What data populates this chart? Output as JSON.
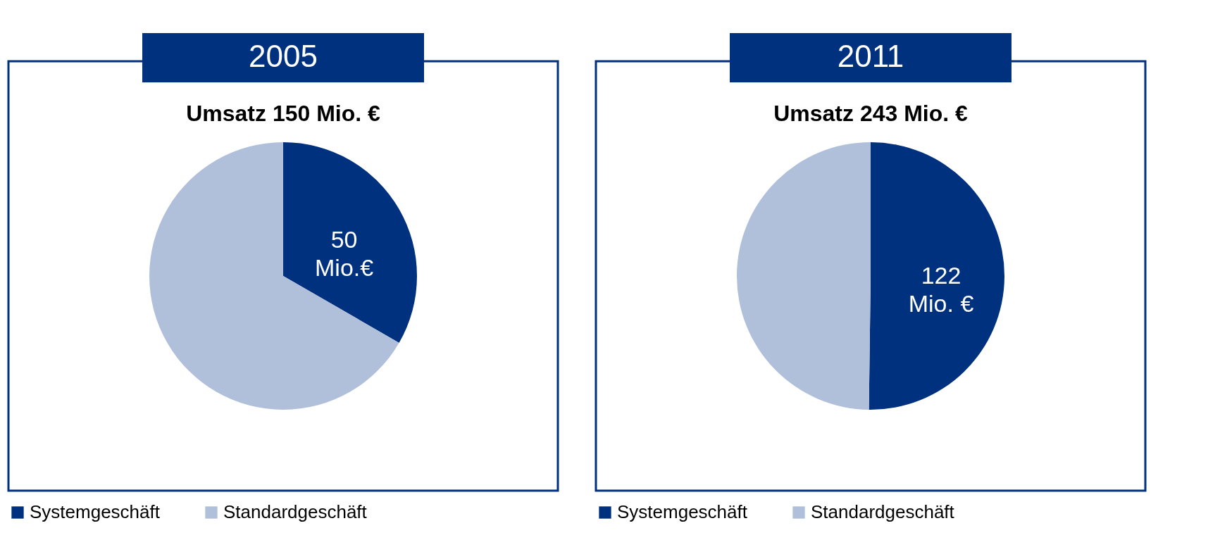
{
  "chart_data": [
    {
      "type": "pie",
      "title": "2005",
      "subtitle": "Umsatz 150 Mio. €",
      "categories": [
        "Systemgeschäft",
        "Standardgeschäft"
      ],
      "values": [
        50,
        100
      ],
      "colors": [
        "#00317f",
        "#b0bfda"
      ],
      "value_labels": [
        "50\nMio.€",
        null
      ],
      "legend": "bottom"
    },
    {
      "type": "pie",
      "title": "2011",
      "subtitle": "Umsatz 243 Mio. €",
      "categories": [
        "Systemgeschäft",
        "Standardgeschäft"
      ],
      "values": [
        122,
        121
      ],
      "colors": [
        "#00317f",
        "#b0bfda"
      ],
      "value_labels": [
        "122\nMio. €",
        null
      ],
      "legend": "bottom"
    }
  ]
}
